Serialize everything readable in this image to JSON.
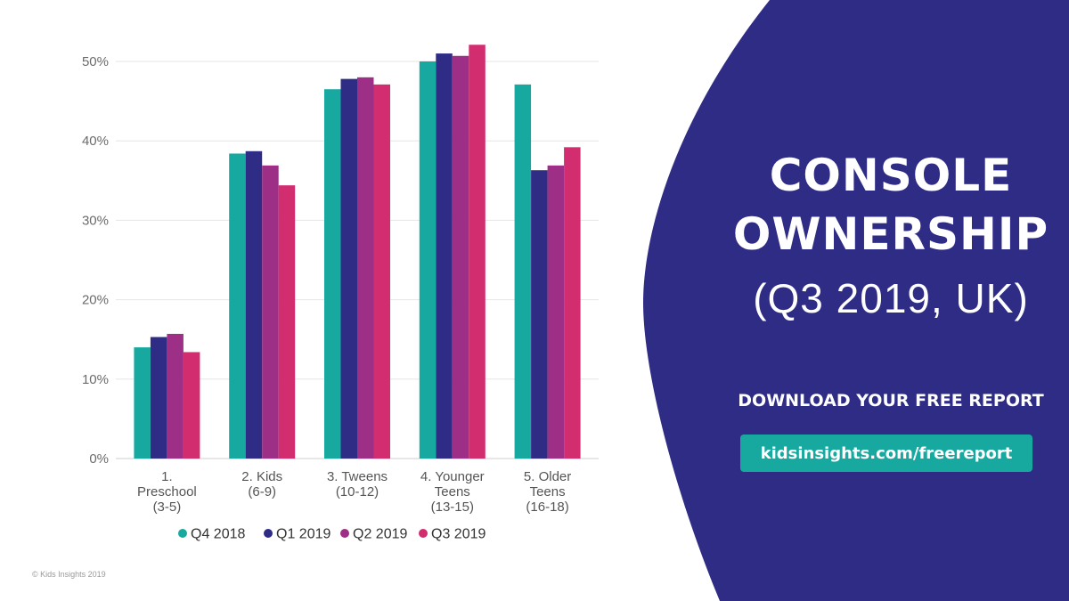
{
  "colors": {
    "panel": "#2e2c85",
    "series": [
      "#17a9a0",
      "#2e2c85",
      "#9e2f87",
      "#d22d6f"
    ],
    "link_button": "#17a9a0",
    "grid": "#e6e6e6"
  },
  "chart_data": {
    "type": "bar",
    "categories": [
      [
        "1.",
        "Preschool",
        "(3-5)"
      ],
      [
        "2. Kids",
        "(6-9)"
      ],
      [
        "3. Tweens",
        "(10-12)"
      ],
      [
        "4. Younger",
        "Teens",
        "(13-15)"
      ],
      [
        "5. Older",
        "Teens",
        "(16-18)"
      ]
    ],
    "series": [
      {
        "name": "Q4 2018",
        "values": [
          14,
          38.4,
          46.5,
          50,
          47.1
        ]
      },
      {
        "name": "Q1 2019",
        "values": [
          15.3,
          38.7,
          47.8,
          51,
          36.3
        ]
      },
      {
        "name": "Q2 2019",
        "values": [
          15.7,
          36.9,
          48,
          50.7,
          36.9
        ]
      },
      {
        "name": "Q3 2019",
        "values": [
          13.4,
          34.4,
          47.1,
          52.1,
          39.2
        ]
      }
    ],
    "yticks": [
      "0%",
      "10%",
      "20%",
      "30%",
      "40%",
      "50%"
    ],
    "ylim": [
      0,
      50
    ],
    "grid": true,
    "legend_position": "bottom"
  },
  "panel": {
    "title_line1": "CONSOLE",
    "title_line2": "OWNERSHIP",
    "subtitle": "(Q3 2019, UK)",
    "cta": "DOWNLOAD YOUR FREE REPORT",
    "link": "kidsinsights.com/freereport"
  },
  "footer": {
    "copyright": "© Kids Insights 2019"
  }
}
